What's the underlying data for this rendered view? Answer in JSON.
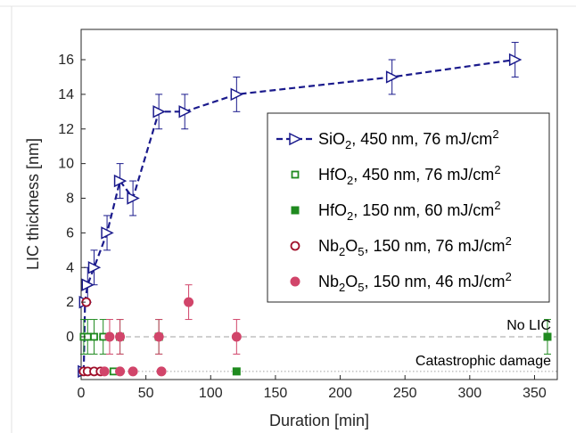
{
  "chart_data": {
    "type": "scatter",
    "xlabel": "Duration [min]",
    "ylabel": "LIC thickness [nm]",
    "xlim": [
      0,
      360
    ],
    "ylim": [
      -2,
      17
    ],
    "xticks": [
      0,
      50,
      100,
      150,
      200,
      250,
      300,
      350
    ],
    "yticks": [
      0,
      2,
      4,
      6,
      8,
      10,
      12,
      14,
      16
    ],
    "grid": false,
    "legend_position": "center-right",
    "annotations": {
      "no_lic": "No LIC",
      "catastrophic": "Catastrophic damage"
    },
    "reference_lines": [
      {
        "y": 0,
        "style": "dashed",
        "color": "#a0a0a0"
      },
      {
        "y": -2,
        "style": "dotted",
        "color": "#a0a0a0"
      }
    ],
    "series": [
      {
        "legend": {
          "formula": "SiO",
          "sub": "2",
          "tail": ", 450 nm, 76 mJ/cm",
          "sup": "2"
        },
        "marker": "triangle-right-open",
        "line": "dashed",
        "color": "#1a1a8c",
        "points": [
          {
            "x": 2,
            "y": -2,
            "err": 0
          },
          {
            "x": 3,
            "y": 2,
            "err": 0
          },
          {
            "x": 5,
            "y": 3,
            "err": 1
          },
          {
            "x": 10,
            "y": 4,
            "err": 1
          },
          {
            "x": 20,
            "y": 6,
            "err": 1
          },
          {
            "x": 30,
            "y": 9,
            "err": 1
          },
          {
            "x": 40,
            "y": 8,
            "err": 1
          },
          {
            "x": 60,
            "y": 13,
            "err": 1
          },
          {
            "x": 80,
            "y": 13,
            "err": 1
          },
          {
            "x": 120,
            "y": 14,
            "err": 1
          },
          {
            "x": 240,
            "y": 15,
            "err": 1
          },
          {
            "x": 335,
            "y": 16,
            "err": 1
          }
        ]
      },
      {
        "legend": {
          "formula": "HfO",
          "sub": "2",
          "tail": ", 450 nm, 76 mJ/cm",
          "sup": "2"
        },
        "marker": "square-open",
        "line": "none",
        "color": "#1f8a1f",
        "points": [
          {
            "x": 2,
            "y": 0,
            "err": 1
          },
          {
            "x": 5,
            "y": 0,
            "err": 1
          },
          {
            "x": 10,
            "y": 0,
            "err": 1
          },
          {
            "x": 17,
            "y": 0,
            "err": 1
          },
          {
            "x": 25,
            "y": -2,
            "err": 0
          }
        ]
      },
      {
        "legend": {
          "formula": "HfO",
          "sub": "2",
          "tail": ", 150 nm, 60 mJ/cm",
          "sup": "2"
        },
        "marker": "square-filled",
        "line": "none",
        "color": "#1f8a1f",
        "points": [
          {
            "x": 30,
            "y": 0,
            "err": 1
          },
          {
            "x": 60,
            "y": 0,
            "err": 1
          },
          {
            "x": 120,
            "y": -2,
            "err": 0
          },
          {
            "x": 360,
            "y": 0,
            "err": 1
          }
        ]
      },
      {
        "legend": {
          "formula": "Nb",
          "sub": "2",
          "mid": "O",
          "sub2": "5",
          "tail": ", 150 nm, 76 mJ/cm",
          "sup": "2"
        },
        "marker": "circle-open",
        "line": "none",
        "color": "#a0102a",
        "points": [
          {
            "x": 2,
            "y": -2,
            "err": 0
          },
          {
            "x": 4,
            "y": 2,
            "err": 0
          },
          {
            "x": 5,
            "y": -2,
            "err": 0
          },
          {
            "x": 10,
            "y": -2,
            "err": 0
          },
          {
            "x": 15,
            "y": -2,
            "err": 0
          }
        ]
      },
      {
        "legend": {
          "formula": "Nb",
          "sub": "2",
          "mid": "O",
          "sub2": "5",
          "tail": ", 150 nm, 46 mJ/cm",
          "sup": "2"
        },
        "marker": "circle-filled",
        "line": "none",
        "color": "#d1456a",
        "points": [
          {
            "x": 18,
            "y": -2,
            "err": 0
          },
          {
            "x": 22,
            "y": 0,
            "err": 1
          },
          {
            "x": 30,
            "y": -2,
            "err": 0
          },
          {
            "x": 30,
            "y": 0,
            "err": 1
          },
          {
            "x": 40,
            "y": -2,
            "err": 0
          },
          {
            "x": 62,
            "y": -2,
            "err": 0
          },
          {
            "x": 60,
            "y": 0,
            "err": 1
          },
          {
            "x": 83,
            "y": 2,
            "err": 1
          },
          {
            "x": 120,
            "y": 0,
            "err": 1
          }
        ]
      }
    ]
  }
}
